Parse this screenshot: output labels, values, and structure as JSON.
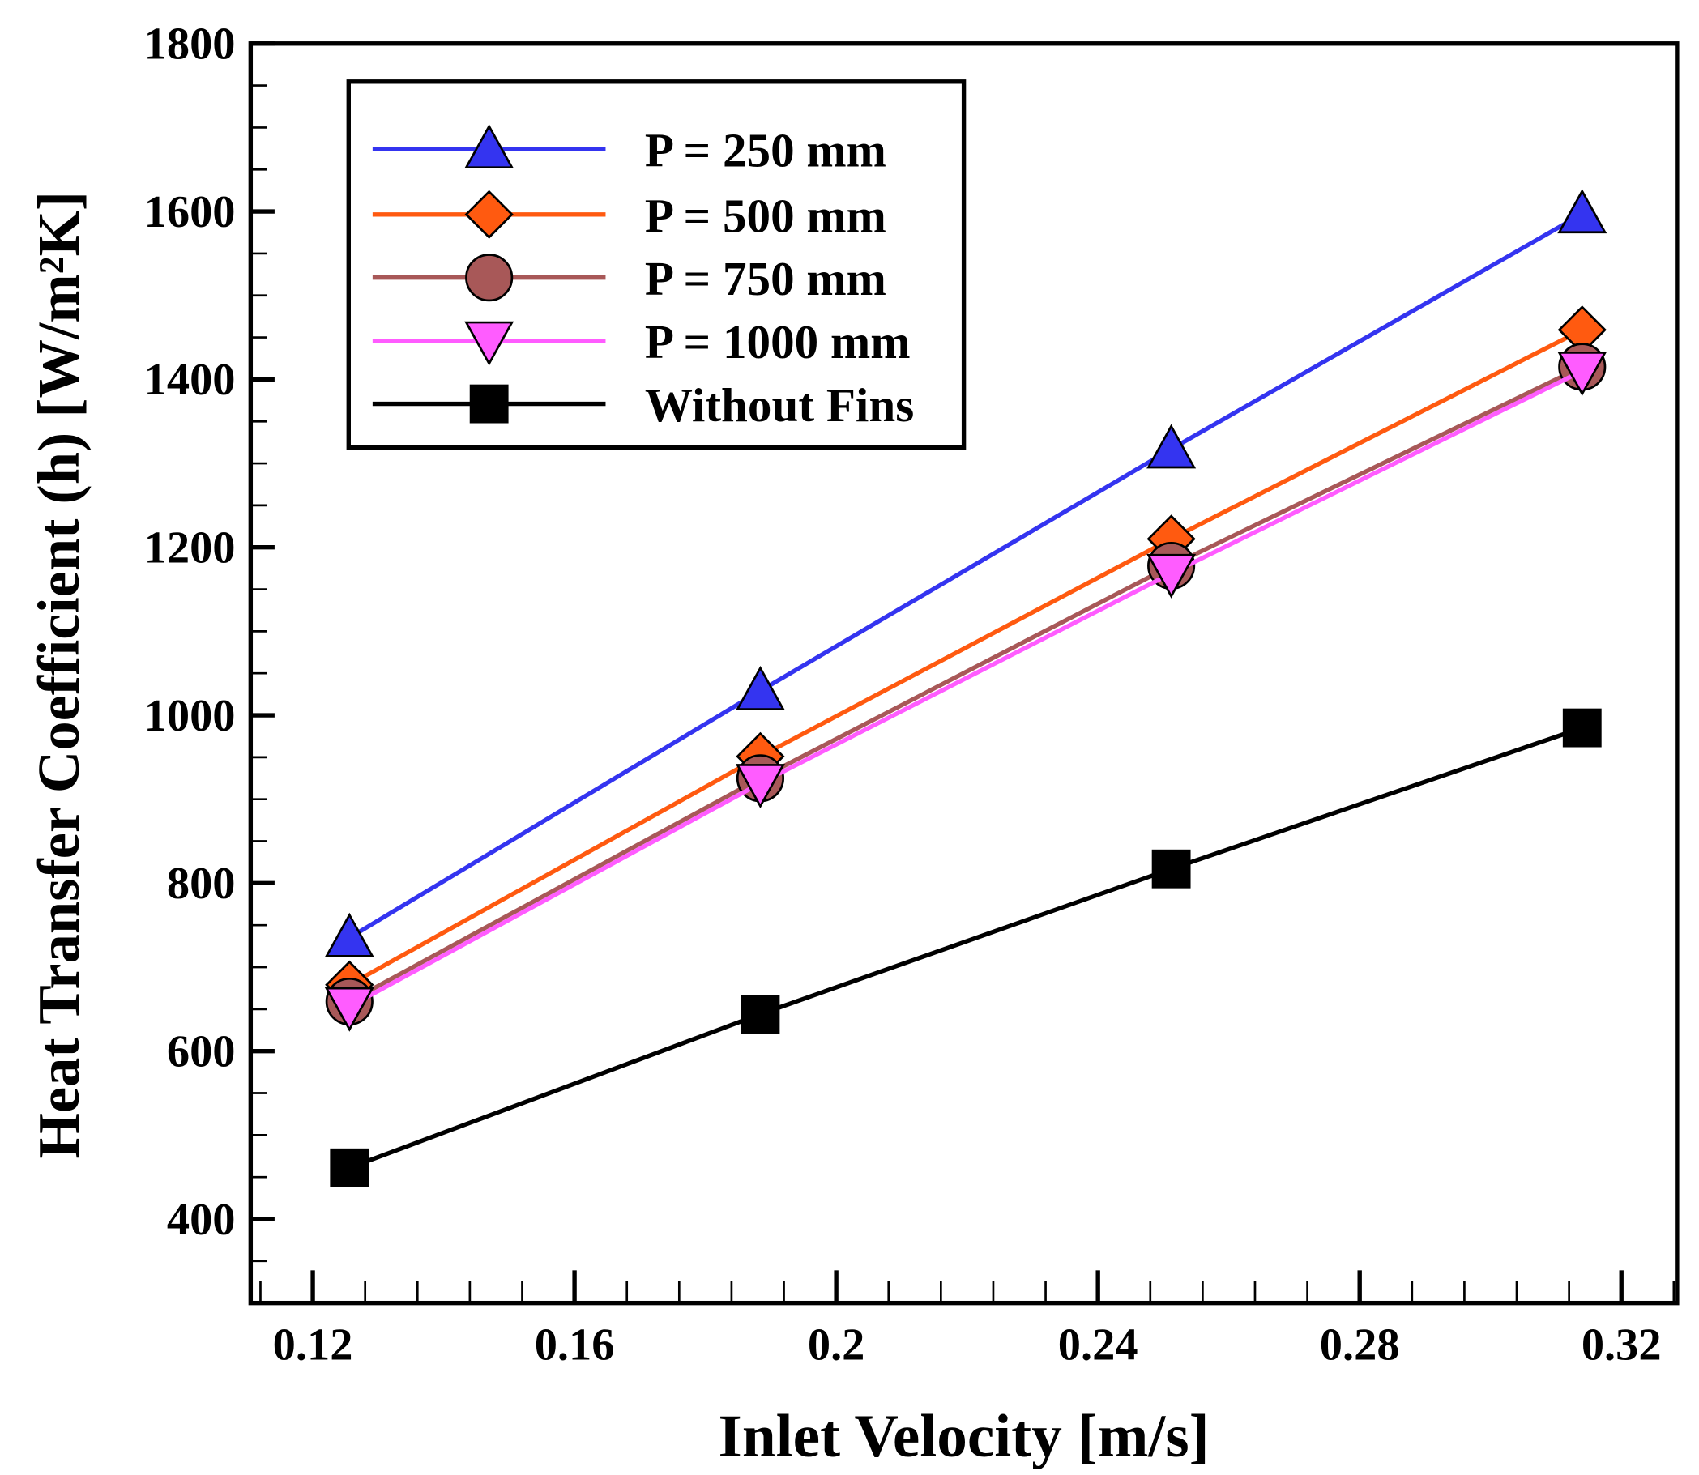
{
  "chart_data": {
    "type": "line",
    "title": "",
    "xlabel": "Inlet Velocity [m/s]",
    "ylabel": "Heat Transfer Coefficient (h) [W/m²K]",
    "xlim": [
      0.1105,
      0.3285
    ],
    "ylim": [
      300,
      1800
    ],
    "xticks": [
      0.12,
      0.16,
      0.2,
      0.24,
      0.28,
      0.32
    ],
    "xtick_labels": [
      "0.12",
      "0.16",
      "0.2",
      "0.24",
      "0.28",
      "0.32"
    ],
    "yticks": [
      400,
      600,
      800,
      1000,
      1200,
      1400,
      1600,
      1800
    ],
    "ytick_labels": [
      "400",
      "600",
      "800",
      "1000",
      "1200",
      "1400",
      "1600",
      "1800"
    ],
    "grid": false,
    "legend_position": "top-left",
    "x": [
      0.1256,
      0.1884,
      0.2512,
      0.314
    ],
    "series": [
      {
        "name": "P = 250 mm",
        "values": [
          735,
          1029,
          1317,
          1597
        ],
        "color": "#3434f0",
        "marker": "triangle-up"
      },
      {
        "name": "P = 500 mm",
        "values": [
          679,
          951,
          1210,
          1459
        ],
        "color": "#ff5a10",
        "marker": "diamond"
      },
      {
        "name": "P = 750 mm",
        "values": [
          659,
          925,
          1178,
          1415
        ],
        "color": "#a85858",
        "marker": "circle"
      },
      {
        "name": "P = 1000 mm",
        "values": [
          653,
          919,
          1169,
          1410
        ],
        "color": "#ff5cff",
        "marker": "triangle-down"
      },
      {
        "name": "Without Fins",
        "values": [
          461,
          644,
          817,
          985
        ],
        "color": "#000000",
        "marker": "square"
      }
    ]
  }
}
